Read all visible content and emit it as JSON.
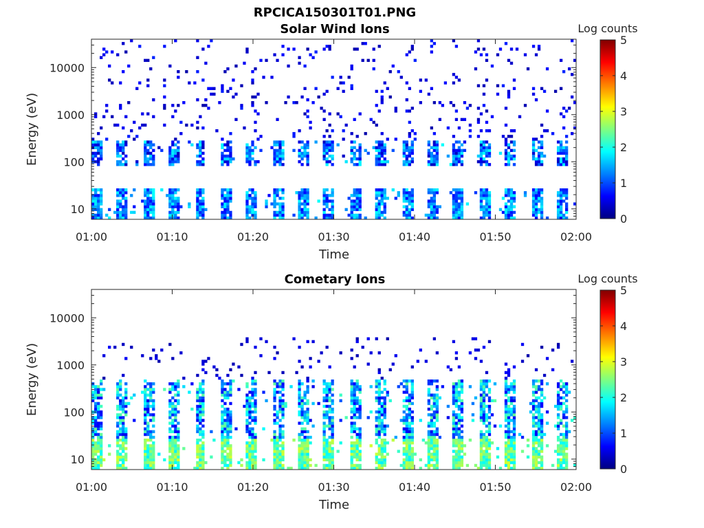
{
  "figure": {
    "title": "RPCICA150301T01.PNG"
  },
  "chart_data": [
    {
      "type": "heatmap",
      "title": "Solar Wind Ions",
      "xlabel": "Time",
      "ylabel": "Energy (eV)",
      "x_ticks": [
        "01:00",
        "01:10",
        "01:20",
        "01:30",
        "01:40",
        "01:50",
        "02:00"
      ],
      "xlim_minutes": [
        0,
        60
      ],
      "y_ticks": [
        "10",
        "100",
        "1000",
        "10000"
      ],
      "y_tick_values": [
        10,
        100,
        1000,
        10000
      ],
      "ylim": [
        6,
        40000
      ],
      "y_scale": "log",
      "colorbar": {
        "title": "Log counts",
        "ticks": [
          "0",
          "1",
          "2",
          "3",
          "4",
          "5"
        ],
        "range": [
          0,
          5
        ],
        "colormap": "jet"
      },
      "sweep_period_minutes": 3.2,
      "bands": [
        {
          "name": "low",
          "emin": 6,
          "emax": 28,
          "level_min": 0.6,
          "level_max": 1.9,
          "density": 0.85
        },
        {
          "name": "core",
          "emin": 80,
          "emax": 300,
          "level_min": 0.3,
          "level_max": 1.9,
          "density": 0.75
        },
        {
          "name": "scatter",
          "emin": 300,
          "emax": 40000,
          "level_min": 0.2,
          "level_max": 0.8,
          "density": 0.08
        }
      ]
    },
    {
      "type": "heatmap",
      "title": "Cometary Ions",
      "xlabel": "Time",
      "ylabel": "Energy (eV)",
      "x_ticks": [
        "01:00",
        "01:10",
        "01:20",
        "01:30",
        "01:40",
        "01:50",
        "02:00"
      ],
      "xlim_minutes": [
        0,
        60
      ],
      "y_ticks": [
        "10",
        "100",
        "1000",
        "10000"
      ],
      "y_tick_values": [
        10,
        100,
        1000,
        10000
      ],
      "ylim": [
        6,
        40000
      ],
      "y_scale": "log",
      "colorbar": {
        "title": "Log counts",
        "ticks": [
          "0",
          "1",
          "2",
          "3",
          "4",
          "5"
        ],
        "range": [
          0,
          5
        ],
        "colormap": "jet"
      },
      "sweep_period_minutes": 3.2,
      "bands": [
        {
          "name": "low",
          "emin": 6,
          "emax": 28,
          "level_min": 1.8,
          "level_max": 2.9,
          "density": 0.9
        },
        {
          "name": "core",
          "emin": 28,
          "emax": 500,
          "level_min": 0.5,
          "level_max": 2.4,
          "density": 0.7
        },
        {
          "name": "scatter",
          "emin": 500,
          "emax": 4000,
          "level_min": 0.2,
          "level_max": 0.6,
          "density": 0.06
        }
      ]
    }
  ]
}
